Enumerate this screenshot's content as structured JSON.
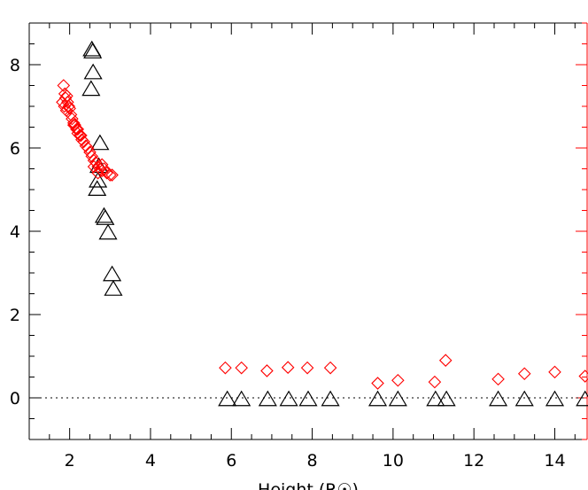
{
  "chart_data": {
    "type": "scatter",
    "title": "",
    "xlabel": "Height (R☉)",
    "ylabel": "",
    "xlim": [
      1.0,
      14.8
    ],
    "ylim": [
      -1.0,
      9.0
    ],
    "x_ticks": [
      2,
      4,
      6,
      8,
      10,
      12,
      14
    ],
    "x_tick_labels": [
      "2",
      "4",
      "6",
      "8",
      "10",
      "12",
      "14"
    ],
    "y_ticks": [
      0,
      2,
      4,
      6,
      8
    ],
    "y_tick_labels": [
      "0",
      "2",
      "4",
      "6",
      "8"
    ],
    "grid": false,
    "zero_line": {
      "y": 0,
      "style": "dotted"
    },
    "right_axis_color": "#ff0000",
    "series": [
      {
        "marker": "triangle",
        "color": "#000000",
        "x": [
          2.55,
          2.57,
          2.58,
          2.53,
          2.75,
          2.72,
          2.7,
          2.68,
          2.85,
          2.88,
          2.95,
          3.05,
          3.08,
          5.9,
          6.25,
          6.9,
          7.42,
          7.9,
          8.45,
          9.62,
          10.12,
          11.05,
          11.32,
          12.6,
          13.25,
          14.0,
          14.75
        ],
        "y": [
          8.35,
          8.3,
          7.8,
          7.4,
          6.1,
          5.55,
          5.2,
          5.0,
          4.35,
          4.3,
          3.95,
          2.95,
          2.6,
          -0.05,
          -0.05,
          -0.05,
          -0.05,
          -0.05,
          -0.05,
          -0.05,
          -0.05,
          -0.05,
          -0.05,
          -0.05,
          -0.05,
          -0.05,
          -0.05
        ]
      },
      {
        "marker": "diamond",
        "color": "#ff0000",
        "x": [
          1.85,
          1.88,
          1.9,
          1.93,
          1.95,
          1.98,
          2.0,
          2.03,
          2.06,
          2.1,
          2.13,
          2.17,
          2.2,
          2.25,
          2.3,
          2.35,
          2.4,
          2.45,
          2.5,
          2.55,
          2.6,
          2.65,
          2.7,
          2.75,
          2.8,
          2.85,
          2.92,
          3.0,
          3.05,
          2.6,
          2.7,
          1.82,
          1.87,
          1.92,
          2.1,
          2.2,
          2.28,
          2.8,
          5.85,
          6.25,
          6.88,
          7.4,
          7.88,
          8.45,
          9.62,
          10.12,
          11.03,
          11.3,
          12.6,
          13.25,
          14.0,
          14.75
        ],
        "y": [
          7.5,
          7.3,
          7.2,
          7.25,
          7.1,
          7.0,
          6.95,
          6.8,
          6.7,
          6.6,
          6.55,
          6.45,
          6.35,
          6.3,
          6.2,
          6.15,
          6.05,
          6.0,
          5.9,
          5.8,
          5.7,
          5.65,
          5.55,
          5.5,
          5.45,
          5.5,
          5.4,
          5.35,
          5.35,
          5.55,
          5.4,
          7.1,
          7.0,
          6.9,
          6.55,
          6.45,
          6.3,
          5.6,
          0.72,
          0.72,
          0.65,
          0.73,
          0.72,
          0.72,
          0.35,
          0.42,
          0.38,
          0.9,
          0.45,
          0.58,
          0.62,
          0.52
        ]
      }
    ]
  }
}
